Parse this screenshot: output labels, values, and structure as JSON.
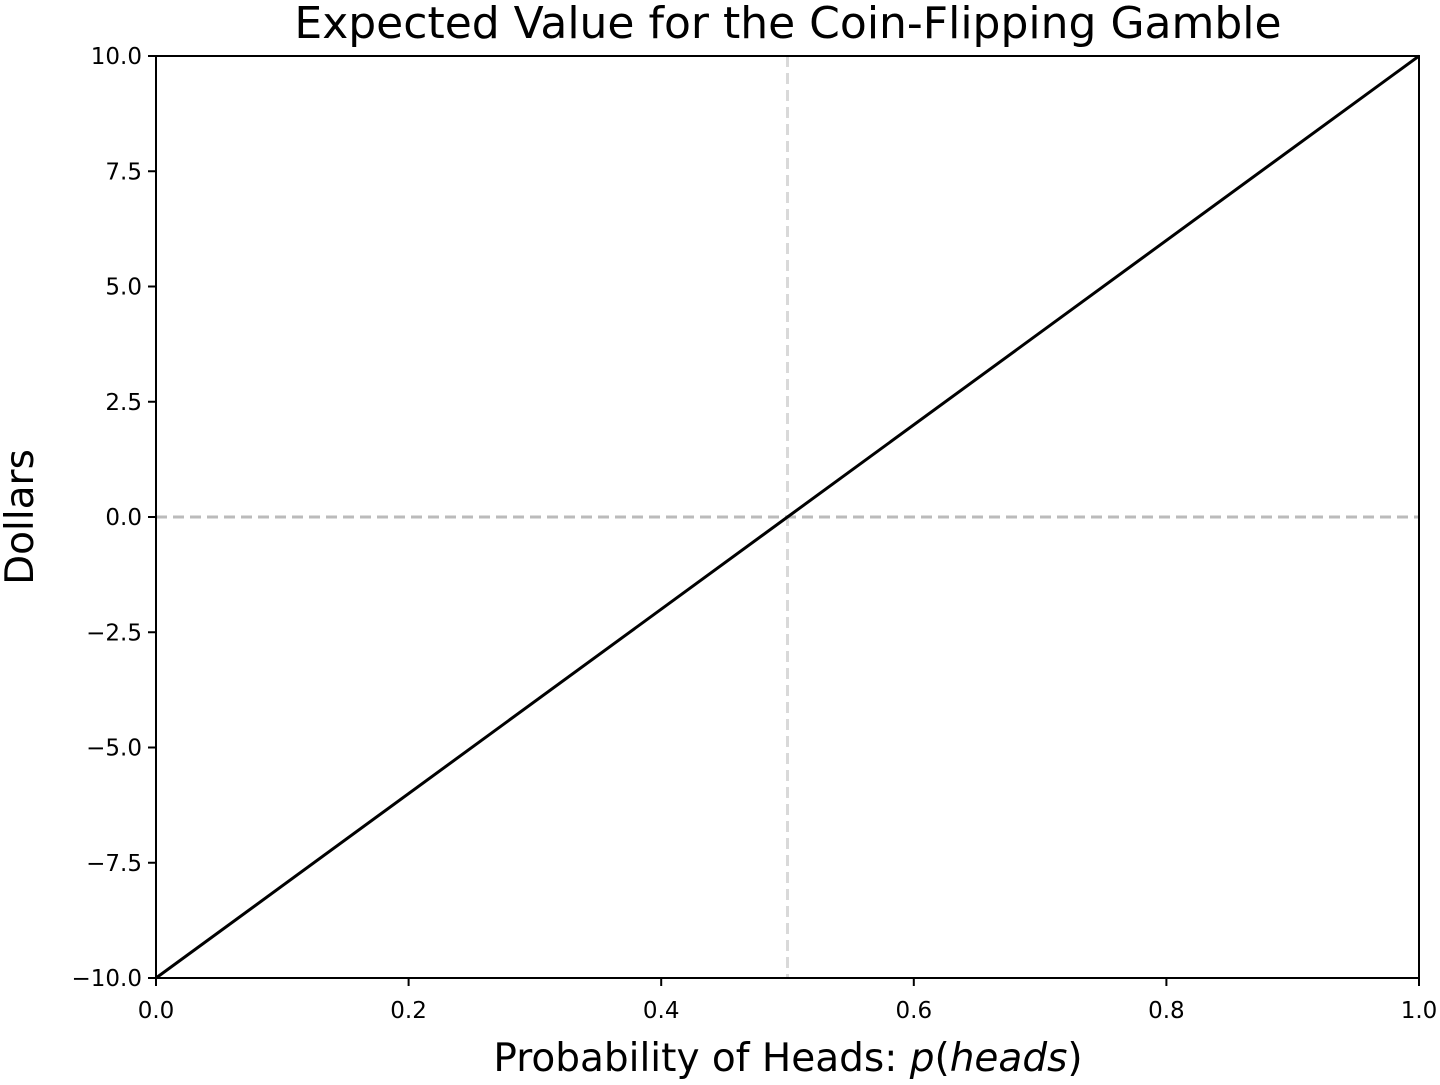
{
  "chart_data": {
    "type": "line",
    "title": "Expected Value for the Coin-Flipping Gamble",
    "xlabel": {
      "prefix": "Probability of Heads: ",
      "math_var": "p",
      "open_paren": "(",
      "math_arg": "heads",
      "close_paren": ")"
    },
    "ylabel": "Dollars",
    "xlim": [
      0.0,
      1.0
    ],
    "ylim": [
      -10.0,
      10.0
    ],
    "x_ticks": [
      0.0,
      0.2,
      0.4,
      0.6,
      0.8,
      1.0
    ],
    "x_tick_labels": [
      "0.0",
      "0.2",
      "0.4",
      "0.6",
      "0.8",
      "1.0"
    ],
    "y_ticks": [
      -10.0,
      -7.5,
      -5.0,
      -2.5,
      0.0,
      2.5,
      5.0,
      7.5,
      10.0
    ],
    "y_tick_labels": [
      "−10.0",
      "−7.5",
      "−5.0",
      "−2.5",
      "0.0",
      "2.5",
      "5.0",
      "7.5",
      "10.0"
    ],
    "grid": false,
    "series": [
      {
        "x": [
          0.0,
          0.5,
          1.0
        ],
        "y": [
          -10.0,
          0.0,
          10.0
        ],
        "color": "#000000",
        "style": "solid"
      }
    ],
    "reference_lines": [
      {
        "orientation": "horizontal",
        "value": 0.0,
        "color": "#bbbbbb",
        "style": "dashed"
      },
      {
        "orientation": "vertical",
        "value": 0.5,
        "color": "#d9d9d9",
        "style": "dashed"
      }
    ]
  }
}
